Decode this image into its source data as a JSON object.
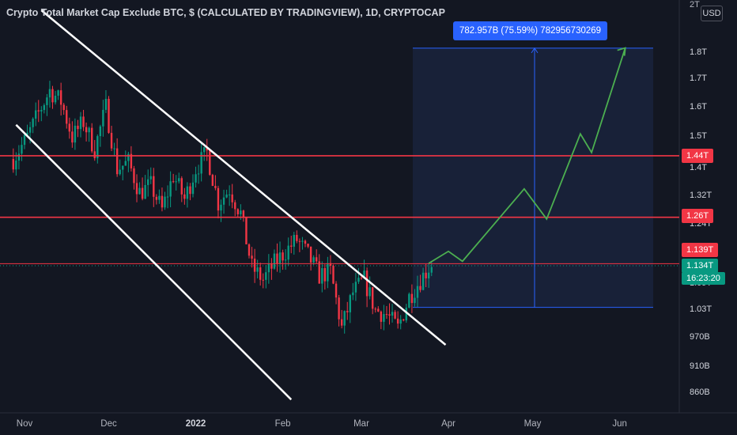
{
  "header": {
    "title": "Crypto Total Market Cap Exclude BTC, $ (CALCULATED BY TRADINGVIEW), 1D, CRYPTOCAP",
    "currency": "USD",
    "top_label": "2T"
  },
  "measurement": {
    "label": "782.957B (75.59%) 782956730269"
  },
  "price_tags": {
    "level_high": "1.44T",
    "level_mid": "1.26T",
    "level_low": "1.139T",
    "current_price": "1.134T",
    "countdown": "16:23:20"
  },
  "colors": {
    "background": "#131722",
    "up_candle": "#089981",
    "down_candle": "#f23645",
    "trendline": "#ffffff",
    "projection": "#4caf50",
    "measure": "#2962ff",
    "resistance": "#f23645"
  },
  "chart_data": {
    "type": "candlestick",
    "title": "Crypto Total Market Cap Exclude BTC, $ (CALCULATED BY TRADINGVIEW), 1D, CRYPTOCAP",
    "y_scale": "log",
    "y_range_T": [
      0.82,
      2.05
    ],
    "y_tick_labels": [
      "1.8T",
      "1.7T",
      "1.6T",
      "1.5T",
      "1.4T",
      "1.32T",
      "1.24T",
      "1.09T",
      "1.03T",
      "970B",
      "910B",
      "860B"
    ],
    "y_tick_values_T": [
      1.8,
      1.7,
      1.6,
      1.5,
      1.4,
      1.32,
      1.24,
      1.09,
      1.03,
      0.97,
      0.91,
      0.86
    ],
    "x_tick_labels": [
      "Nov",
      "Dec",
      "2022",
      "Feb",
      "Mar",
      "Apr",
      "May",
      "Jun"
    ],
    "x_tick_dates": [
      "2021-11-01",
      "2021-12-01",
      "2022-01-01",
      "2022-02-01",
      "2022-03-01",
      "2022-04-01",
      "2022-05-01",
      "2022-06-01"
    ],
    "x_range": [
      "2021-10-28",
      "2022-06-13"
    ],
    "close_series_T": {
      "dates": [
        "2021-10-28",
        "2021-11-02",
        "2021-11-06",
        "2021-11-10",
        "2021-11-14",
        "2021-11-18",
        "2021-11-22",
        "2021-11-26",
        "2021-11-30",
        "2021-12-04",
        "2021-12-08",
        "2021-12-12",
        "2021-12-16",
        "2021-12-20",
        "2021-12-24",
        "2021-12-28",
        "2022-01-01",
        "2022-01-05",
        "2022-01-09",
        "2022-01-13",
        "2022-01-17",
        "2022-01-21",
        "2022-01-25",
        "2022-01-29",
        "2022-02-02",
        "2022-02-06",
        "2022-02-10",
        "2022-02-14",
        "2022-02-18",
        "2022-02-22",
        "2022-02-26",
        "2022-03-02",
        "2022-03-06",
        "2022-03-10",
        "2022-03-14",
        "2022-03-18",
        "2022-03-22",
        "2022-03-26"
      ],
      "values": [
        1.43,
        1.5,
        1.58,
        1.66,
        1.62,
        1.5,
        1.55,
        1.46,
        1.6,
        1.4,
        1.42,
        1.33,
        1.35,
        1.28,
        1.38,
        1.31,
        1.4,
        1.45,
        1.3,
        1.34,
        1.27,
        1.13,
        1.1,
        1.14,
        1.17,
        1.2,
        1.16,
        1.11,
        1.12,
        0.99,
        1.07,
        1.1,
        1.03,
        1.02,
        0.99,
        1.06,
        1.1,
        1.14
      ]
    },
    "resistance_levels_T": [
      1.44,
      1.26,
      1.139
    ],
    "current_price_T": 1.134,
    "measurement": {
      "from_T": 1.036,
      "to_T": 1.819,
      "change": "782.957B (75.59%) 782956730269",
      "start_date": "2022-03-25",
      "end_date": "2022-06-13"
    },
    "projection_path": {
      "dates": [
        "2022-03-25",
        "2022-04-01",
        "2022-04-06",
        "2022-04-28",
        "2022-05-06",
        "2022-05-18",
        "2022-05-22",
        "2022-06-03"
      ],
      "values_T": [
        1.14,
        1.17,
        1.145,
        1.34,
        1.255,
        1.51,
        1.45,
        1.82
      ]
    }
  }
}
